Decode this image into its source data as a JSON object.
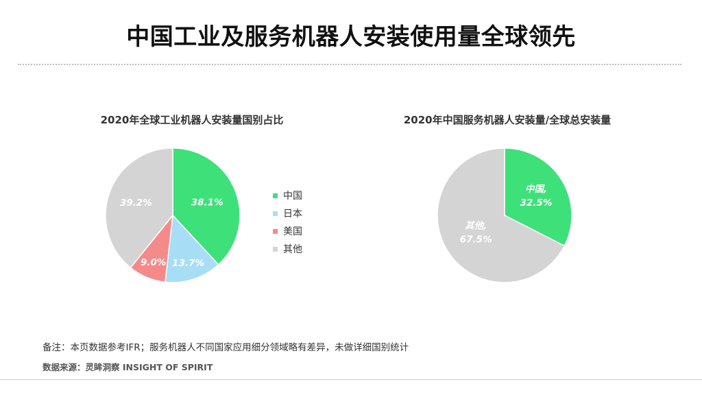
{
  "page": {
    "title": "中国工业及服务机器人安装使用量全球领先",
    "footnote": "备注：本页数据参考IFR；服务机器人不同国家应用细分领域略有差异，未做详细国别统计",
    "source": "数据来源：灵眸洞察 INSIGHT OF SPIRIT"
  },
  "colors": {
    "china": "#3ee07a",
    "japan": "#a8def5",
    "usa": "#f58a8a",
    "other": "#d4d4d4"
  },
  "chart_data": [
    {
      "type": "pie",
      "title": "2020年全球工业机器人安装量国别占比",
      "legend_position": "right",
      "slices": [
        {
          "name": "中国",
          "value": 38.1,
          "label": "38.1%",
          "color": "#3ee07a"
        },
        {
          "name": "日本",
          "value": 13.7,
          "label": "13.7%",
          "color": "#a8def5"
        },
        {
          "name": "美国",
          "value": 9.0,
          "label": "9.0%",
          "color": "#f58a8a"
        },
        {
          "name": "其他",
          "value": 39.2,
          "label": "39.2%",
          "color": "#d4d4d4"
        }
      ]
    },
    {
      "type": "pie",
      "title": "2020年中国服务机器人安装量/全球总安装量",
      "slices": [
        {
          "name": "中国,",
          "value": 32.5,
          "label": "32.5%",
          "color": "#3ee07a"
        },
        {
          "name": "其他,",
          "value": 67.5,
          "label": "67.5%",
          "color": "#d4d4d4"
        }
      ]
    }
  ]
}
